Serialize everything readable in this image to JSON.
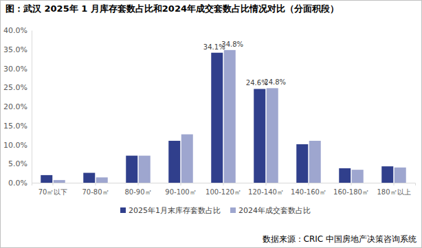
{
  "chart_data": {
    "type": "bar",
    "title": "图：武汉 2025年 1 月库存套数占比和2024年成交套数占比情况对比（分面积段）",
    "annotations": [
      "数据来源：CRIC 中国房地产决策咨询系统"
    ],
    "categories": [
      "70㎡以下",
      "70-80㎡",
      "80-90㎡",
      "90-100㎡",
      "100-120㎡",
      "120-140㎡",
      "140-160㎡",
      "160-180㎡",
      "180㎡以上"
    ],
    "series": [
      {
        "name": "2025年1月末库存套数占比",
        "color": "#303f8c",
        "values": [
          2.0,
          2.6,
          7.1,
          11.0,
          34.1,
          24.6,
          10.1,
          3.8,
          4.3
        ],
        "value_labels": [
          null,
          null,
          null,
          null,
          "34.1%",
          "24.6%",
          null,
          null,
          null
        ]
      },
      {
        "name": "2024年成交套数占比",
        "color": "#9ea6cf",
        "values": [
          0.7,
          1.4,
          7.1,
          12.7,
          34.8,
          24.8,
          11.0,
          3.4,
          4.0
        ],
        "value_labels": [
          null,
          null,
          null,
          null,
          "34.8%",
          "24.8%",
          null,
          null,
          null
        ]
      }
    ],
    "ylim": [
      0,
      40
    ],
    "yticks": [
      {
        "value": 0,
        "label": "0.0%"
      },
      {
        "value": 5,
        "label": "5.0%"
      },
      {
        "value": 10,
        "label": "10.0%"
      },
      {
        "value": 15,
        "label": "15.0%"
      },
      {
        "value": 20,
        "label": "20.0%"
      },
      {
        "value": 25,
        "label": "25.0%"
      },
      {
        "value": 30,
        "label": "30.0%"
      },
      {
        "value": 35,
        "label": "35.0%"
      },
      {
        "value": 40,
        "label": "40.0%"
      }
    ],
    "grid": false,
    "legend": "bottom"
  }
}
